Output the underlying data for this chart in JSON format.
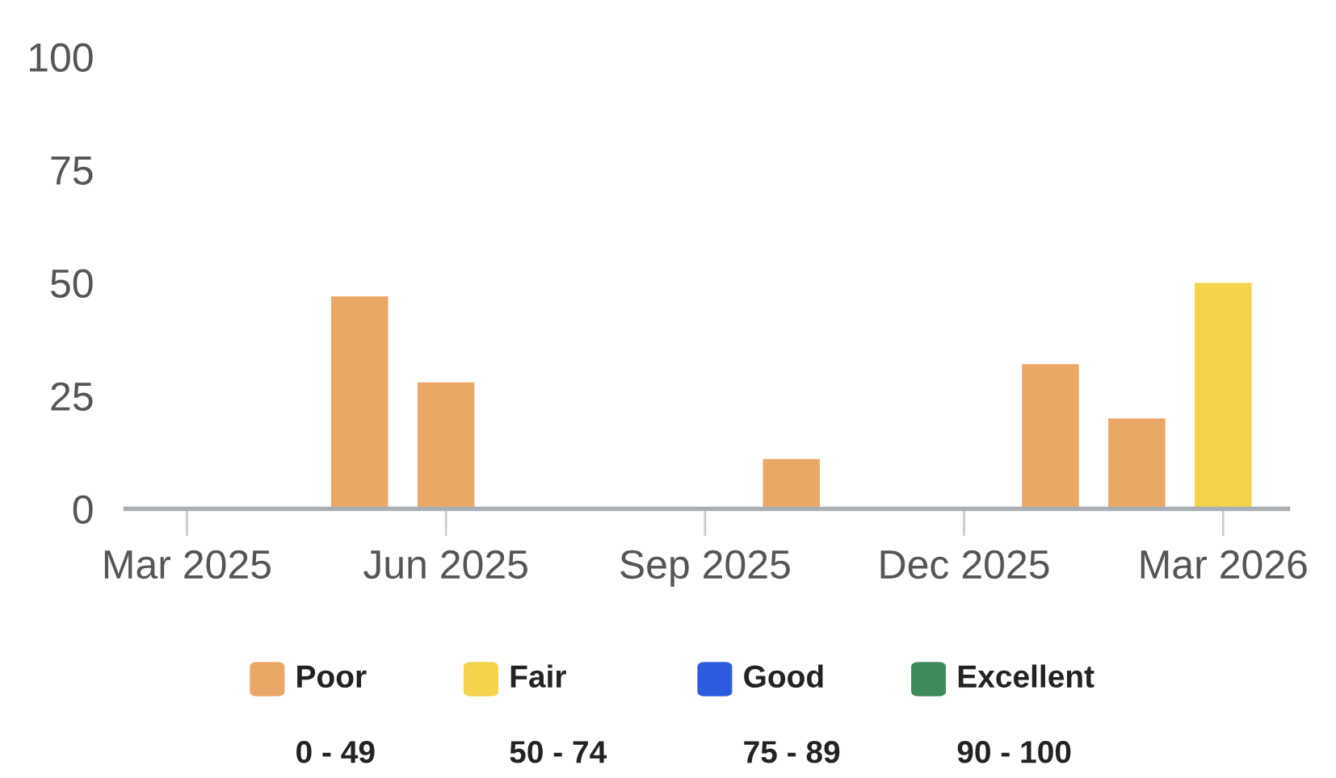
{
  "chart_data": {
    "type": "bar",
    "categories": [
      "Mar 2025",
      null,
      null,
      "Jun 2025",
      null,
      null,
      "Sep 2025",
      null,
      null,
      "Dec 2025",
      null,
      null,
      "Mar 2026"
    ],
    "series": [
      {
        "name": "Poor",
        "color": "#eba766",
        "values": [
          null,
          null,
          47,
          28,
          null,
          null,
          null,
          11,
          null,
          null,
          32,
          20,
          null
        ]
      },
      {
        "name": "Fair",
        "color": "#f3d44b",
        "values": [
          null,
          null,
          null,
          null,
          null,
          null,
          null,
          null,
          null,
          null,
          null,
          null,
          50
        ]
      },
      {
        "name": "Good",
        "color": "#2b5ce0",
        "values": [
          null,
          null,
          null,
          null,
          null,
          null,
          null,
          null,
          null,
          null,
          null,
          null,
          null
        ]
      },
      {
        "name": "Excellent",
        "color": "#3f8a5a",
        "values": [
          null,
          null,
          null,
          null,
          null,
          null,
          null,
          null,
          null,
          null,
          null,
          null,
          null
        ]
      }
    ],
    "annotations": [
      "0 - 49",
      "50 - 74",
      "75 - 89",
      "90 - 100"
    ],
    "ylim": [
      0,
      100
    ],
    "yticks": [
      0,
      25,
      50,
      75,
      100
    ],
    "grid": false,
    "legend": "bottom"
  }
}
